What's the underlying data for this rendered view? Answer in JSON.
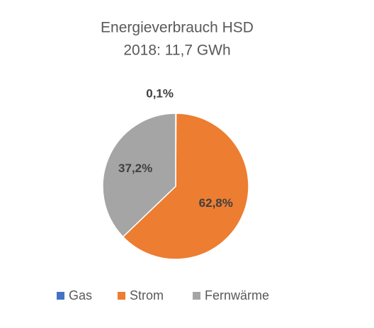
{
  "chart_data": {
    "type": "pie",
    "title": "Energieverbrauch HSD",
    "subtitle": "2018: 11,7 GWh",
    "categories": [
      "Gas",
      "Strom",
      "Fernwärme"
    ],
    "values": [
      0.1,
      62.8,
      37.2
    ],
    "value_labels": [
      "0,1%",
      "62,8%",
      "37,2%"
    ],
    "colors": [
      "#4472c4",
      "#ed7d31",
      "#a5a5a5"
    ],
    "legend": "bottom"
  }
}
